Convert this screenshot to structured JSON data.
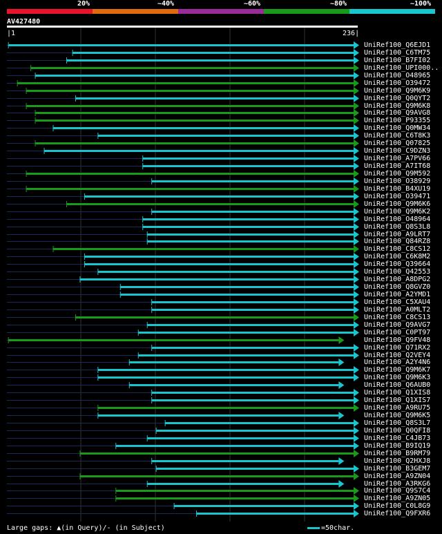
{
  "legend": {
    "labels": [
      "20%",
      "~40%",
      "~60%",
      "~80%",
      "~100%"
    ],
    "colors": [
      "#e8142a",
      "#e06a10",
      "#9a2c9a",
      "#1a9a1a",
      "#18c6d0"
    ]
  },
  "query": {
    "id": "AV427480",
    "start": "1",
    "end": "236"
  },
  "hits": [
    {
      "id": "UniRef100_Q6EJD1",
      "qs": 2,
      "color": "#18c6d0",
      "arrow": "cyan"
    },
    {
      "id": "UniRef100_C6TM75",
      "qs": 45,
      "color": "#18c6d0",
      "arrow": "cyan"
    },
    {
      "id": "UniRef100_B7FI02",
      "qs": 41,
      "color": "#18c6d0",
      "arrow": "cyan"
    },
    {
      "id": "UniRef100_UPI000..",
      "qs": 17,
      "color": "#1a9a1a",
      "arrow": "green"
    },
    {
      "id": "UniRef100_O48965",
      "qs": 20,
      "color": "#18c6d0",
      "arrow": "cyan"
    },
    {
      "id": "UniRef100_O39472",
      "qs": 8,
      "color": "#1a9a1a",
      "arrow": "green"
    },
    {
      "id": "UniRef100_Q9M6K9",
      "qs": 14,
      "color": "#1a9a1a",
      "arrow": "green"
    },
    {
      "id": "UniRef100_Q0QYT2",
      "qs": 47,
      "color": "#18c6d0",
      "arrow": "cyan"
    },
    {
      "id": "UniRef100_Q9M6K8",
      "qs": 14,
      "color": "#1a9a1a",
      "arrow": "green"
    },
    {
      "id": "UniRef100_Q9AVG8",
      "qs": 20,
      "color": "#1a9a1a",
      "arrow": "green"
    },
    {
      "id": "UniRef100_P93355",
      "qs": 20,
      "color": "#1a9a1a",
      "arrow": "green"
    },
    {
      "id": "UniRef100_Q0MW34",
      "qs": 32,
      "color": "#18c6d0",
      "arrow": "cyan"
    },
    {
      "id": "UniRef100_C6T8K3",
      "qs": 62,
      "color": "#18c6d0",
      "arrow": "cyan"
    },
    {
      "id": "UniRef100_Q07825",
      "qs": 20,
      "color": "#1a9a1a",
      "arrow": "green"
    },
    {
      "id": "UniRef100_C9DZN3",
      "qs": 26,
      "color": "#18c6d0",
      "arrow": "cyan"
    },
    {
      "id": "UniRef100_A7PV66",
      "qs": 92,
      "color": "#18c6d0",
      "arrow": "cyan"
    },
    {
      "id": "UniRef100_A7IT68",
      "qs": 92,
      "color": "#18c6d0",
      "arrow": "cyan"
    },
    {
      "id": "UniRef100_Q9M592",
      "qs": 14,
      "color": "#1a9a1a",
      "arrow": "green"
    },
    {
      "id": "UniRef100_O38929",
      "qs": 98,
      "color": "#18c6d0",
      "arrow": "cyan"
    },
    {
      "id": "UniRef100_B4XU19",
      "qs": 14,
      "color": "#1a9a1a",
      "arrow": "green"
    },
    {
      "id": "UniRef100_O39471",
      "qs": 53,
      "color": "#18c6d0",
      "arrow": "cyan"
    },
    {
      "id": "UniRef100_Q9M6K6",
      "qs": 41,
      "color": "#1a9a1a",
      "arrow": "green"
    },
    {
      "id": "UniRef100_Q9M6K2",
      "qs": 98,
      "color": "#18c6d0",
      "arrow": "cyan"
    },
    {
      "id": "UniRef100_O48964",
      "qs": 92,
      "color": "#18c6d0",
      "arrow": "cyan"
    },
    {
      "id": "UniRef100_Q8S3L8",
      "qs": 92,
      "color": "#18c6d0",
      "arrow": "cyan"
    },
    {
      "id": "UniRef100_A9LRT7",
      "qs": 95,
      "color": "#18c6d0",
      "arrow": "cyan"
    },
    {
      "id": "UniRef100_Q84RZ8",
      "qs": 95,
      "color": "#18c6d0",
      "arrow": "cyan"
    },
    {
      "id": "UniRef100_C8CS12",
      "qs": 32,
      "color": "#1a9a1a",
      "arrow": "green"
    },
    {
      "id": "UniRef100_C6K8M2",
      "qs": 53,
      "color": "#18c6d0",
      "arrow": "cyan"
    },
    {
      "id": "UniRef100_Q39664",
      "qs": 53,
      "color": "#18c6d0",
      "arrow": "cyan"
    },
    {
      "id": "UniRef100_Q42553",
      "qs": 62,
      "color": "#18c6d0",
      "arrow": "cyan"
    },
    {
      "id": "UniRef100_A8DPG2",
      "qs": 50,
      "color": "#18c6d0",
      "arrow": "cyan"
    },
    {
      "id": "UniRef100_Q8GVZ0",
      "qs": 77,
      "color": "#18c6d0",
      "arrow": "cyan"
    },
    {
      "id": "UniRef100_A2YMD1",
      "qs": 77,
      "color": "#18c6d0",
      "arrow": "cyan"
    },
    {
      "id": "UniRef100_C5XAU4",
      "qs": 98,
      "color": "#18c6d0",
      "arrow": "cyan"
    },
    {
      "id": "UniRef100_A0MLT2",
      "qs": 98,
      "color": "#18c6d0",
      "arrow": "cyan"
    },
    {
      "id": "UniRef100_C8CS13",
      "qs": 47,
      "color": "#1a9a1a",
      "arrow": "green"
    },
    {
      "id": "UniRef100_Q9AVG7",
      "qs": 95,
      "color": "#18c6d0",
      "arrow": "cyan"
    },
    {
      "id": "UniRef100_C0PT97",
      "qs": 89,
      "color": "#18c6d0",
      "arrow": "cyan"
    },
    {
      "id": "UniRef100_Q9FV48",
      "qs": 2,
      "color": "#1a9a1a",
      "arrow": "green",
      "end": 226
    },
    {
      "id": "UniRef100_Q71RX2",
      "qs": 98,
      "color": "#18c6d0",
      "arrow": "cyan"
    },
    {
      "id": "UniRef100_Q2VEY4",
      "qs": 89,
      "color": "#18c6d0",
      "arrow": "cyan"
    },
    {
      "id": "UniRef100_A2Y4N6",
      "qs": 83,
      "color": "#18c6d0",
      "arrow": "cyan",
      "end": 226
    },
    {
      "id": "UniRef100_Q9M6K7",
      "qs": 62,
      "color": "#18c6d0",
      "arrow": "cyan"
    },
    {
      "id": "UniRef100_Q9M6K3",
      "qs": 62,
      "color": "#18c6d0",
      "arrow": "cyan"
    },
    {
      "id": "UniRef100_Q6AUB0",
      "qs": 83,
      "color": "#18c6d0",
      "arrow": "cyan",
      "end": 226
    },
    {
      "id": "UniRef100_Q1XIS8",
      "qs": 98,
      "color": "#18c6d0",
      "arrow": "cyan"
    },
    {
      "id": "UniRef100_Q1XIS7",
      "qs": 98,
      "color": "#18c6d0",
      "arrow": "cyan"
    },
    {
      "id": "UniRef100_A9RU75",
      "qs": 62,
      "color": "#1a9a1a",
      "arrow": "green"
    },
    {
      "id": "UniRef100_Q9M6K5",
      "qs": 62,
      "color": "#18c6d0",
      "arrow": "cyan",
      "end": 226
    },
    {
      "id": "UniRef100_Q8S3L7",
      "qs": 107,
      "color": "#18c6d0",
      "arrow": "cyan"
    },
    {
      "id": "UniRef100_Q0QFI8",
      "qs": 101,
      "color": "#18c6d0",
      "arrow": "cyan"
    },
    {
      "id": "UniRef100_C4JB73",
      "qs": 95,
      "color": "#18c6d0",
      "arrow": "cyan"
    },
    {
      "id": "UniRef100_B9IQ19",
      "qs": 74,
      "color": "#18c6d0",
      "arrow": "cyan"
    },
    {
      "id": "UniRef100_B9RM79",
      "qs": 50,
      "color": "#1a9a1a",
      "arrow": "green"
    },
    {
      "id": "UniRef100_Q2HXJ8",
      "qs": 98,
      "color": "#18c6d0",
      "arrow": "cyan",
      "end": 226
    },
    {
      "id": "UniRef100_B3GEM7",
      "qs": 101,
      "color": "#18c6d0",
      "arrow": "cyan"
    },
    {
      "id": "UniRef100_A9ZN04",
      "qs": 50,
      "color": "#1a9a1a",
      "arrow": "green"
    },
    {
      "id": "UniRef100_A3RKG6",
      "qs": 95,
      "color": "#18c6d0",
      "arrow": "cyan",
      "end": 226
    },
    {
      "id": "UniRef100_Q9S7C4",
      "qs": 74,
      "color": "#1a9a1a",
      "arrow": "green"
    },
    {
      "id": "UniRef100_A9ZN05",
      "qs": 74,
      "color": "#1a9a1a",
      "arrow": "green"
    },
    {
      "id": "UniRef100_C0L8G9",
      "qs": 113,
      "color": "#18c6d0",
      "arrow": "cyan"
    },
    {
      "id": "UniRef100_Q9FXR6",
      "qs": 128,
      "color": "#18c6d0",
      "arrow": "cyan"
    }
  ],
  "footer": {
    "gaps_text": "Large gaps: ▲(in Query)/- (in Subject)",
    "scale_text": "=50char."
  }
}
